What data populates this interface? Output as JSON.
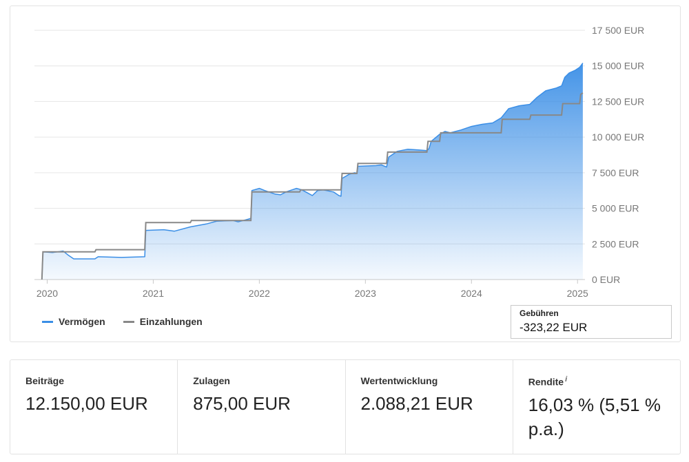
{
  "chart_data": {
    "type": "area",
    "ylim": [
      0,
      17500
    ],
    "y_ticks": [
      {
        "value": 0,
        "label": "0 EUR"
      },
      {
        "value": 2500,
        "label": "2 500 EUR"
      },
      {
        "value": 5000,
        "label": "5 000 EUR"
      },
      {
        "value": 7500,
        "label": "7 500 EUR"
      },
      {
        "value": 10000,
        "label": "10 000 EUR"
      },
      {
        "value": 12500,
        "label": "12 500 EUR"
      },
      {
        "value": 15000,
        "label": "15 000 EUR"
      },
      {
        "value": 17500,
        "label": "17 500 EUR"
      }
    ],
    "xlim": [
      2019.88,
      2025.07
    ],
    "x_ticks": [
      {
        "value": 2020,
        "label": "2020"
      },
      {
        "value": 2021,
        "label": "2021"
      },
      {
        "value": 2022,
        "label": "2022"
      },
      {
        "value": 2023,
        "label": "2023"
      },
      {
        "value": 2024,
        "label": "2024"
      },
      {
        "value": 2025,
        "label": "2025"
      }
    ],
    "grid": true,
    "legend_position": "bottom-left",
    "series": [
      {
        "name": "Vermögen",
        "color": "#3a8ee6",
        "style": "area",
        "points": [
          [
            2019.95,
            0
          ],
          [
            2019.96,
            1950
          ],
          [
            2020.05,
            1900
          ],
          [
            2020.15,
            2000
          ],
          [
            2020.2,
            1700
          ],
          [
            2020.25,
            1450
          ],
          [
            2020.45,
            1450
          ],
          [
            2020.48,
            1600
          ],
          [
            2020.7,
            1550
          ],
          [
            2020.92,
            1600
          ],
          [
            2020.93,
            3450
          ],
          [
            2021.1,
            3500
          ],
          [
            2021.2,
            3400
          ],
          [
            2021.35,
            3700
          ],
          [
            2021.5,
            3900
          ],
          [
            2021.6,
            4100
          ],
          [
            2021.75,
            4150
          ],
          [
            2021.8,
            4050
          ],
          [
            2021.9,
            4250
          ],
          [
            2021.92,
            4300
          ],
          [
            2021.93,
            6250
          ],
          [
            2022.0,
            6400
          ],
          [
            2022.05,
            6250
          ],
          [
            2022.15,
            6000
          ],
          [
            2022.2,
            5950
          ],
          [
            2022.25,
            6150
          ],
          [
            2022.35,
            6400
          ],
          [
            2022.4,
            6300
          ],
          [
            2022.45,
            6100
          ],
          [
            2022.5,
            5900
          ],
          [
            2022.55,
            6250
          ],
          [
            2022.6,
            6300
          ],
          [
            2022.7,
            6150
          ],
          [
            2022.75,
            5900
          ],
          [
            2022.77,
            5850
          ],
          [
            2022.78,
            7100
          ],
          [
            2022.85,
            7400
          ],
          [
            2022.9,
            7500
          ],
          [
            2022.92,
            7450
          ],
          [
            2022.93,
            7950
          ],
          [
            2023.1,
            8000
          ],
          [
            2023.15,
            8050
          ],
          [
            2023.2,
            7900
          ],
          [
            2023.22,
            8600
          ],
          [
            2023.3,
            9000
          ],
          [
            2023.4,
            9150
          ],
          [
            2023.5,
            9100
          ],
          [
            2023.58,
            9050
          ],
          [
            2023.6,
            9200
          ],
          [
            2023.62,
            9700
          ],
          [
            2023.7,
            10200
          ],
          [
            2023.75,
            10400
          ],
          [
            2023.8,
            10300
          ],
          [
            2023.9,
            10500
          ],
          [
            2024.0,
            10750
          ],
          [
            2024.1,
            10900
          ],
          [
            2024.2,
            11000
          ],
          [
            2024.28,
            11350
          ],
          [
            2024.35,
            12000
          ],
          [
            2024.45,
            12200
          ],
          [
            2024.55,
            12300
          ],
          [
            2024.62,
            12800
          ],
          [
            2024.7,
            13250
          ],
          [
            2024.8,
            13450
          ],
          [
            2024.85,
            13600
          ],
          [
            2024.88,
            14200
          ],
          [
            2024.92,
            14500
          ],
          [
            2024.98,
            14700
          ],
          [
            2025.02,
            14900
          ],
          [
            2025.05,
            15200
          ]
        ]
      },
      {
        "name": "Einzahlungen",
        "color": "#888888",
        "style": "step",
        "points": [
          [
            2019.95,
            0
          ],
          [
            2019.96,
            1950
          ],
          [
            2020.45,
            1950
          ],
          [
            2020.46,
            2100
          ],
          [
            2020.92,
            2100
          ],
          [
            2020.93,
            4000
          ],
          [
            2021.35,
            4000
          ],
          [
            2021.36,
            4150
          ],
          [
            2021.92,
            4150
          ],
          [
            2021.93,
            6150
          ],
          [
            2022.38,
            6150
          ],
          [
            2022.39,
            6300
          ],
          [
            2022.77,
            6300
          ],
          [
            2022.78,
            7450
          ],
          [
            2022.92,
            7450
          ],
          [
            2022.93,
            8150
          ],
          [
            2023.2,
            8150
          ],
          [
            2023.21,
            8950
          ],
          [
            2023.58,
            8950
          ],
          [
            2023.59,
            9700
          ],
          [
            2023.7,
            9700
          ],
          [
            2023.71,
            10300
          ],
          [
            2024.28,
            10300
          ],
          [
            2024.29,
            11250
          ],
          [
            2024.55,
            11250
          ],
          [
            2024.56,
            11550
          ],
          [
            2024.85,
            11550
          ],
          [
            2024.86,
            12350
          ],
          [
            2025.02,
            12350
          ],
          [
            2025.03,
            13000
          ],
          [
            2025.05,
            13100
          ]
        ]
      }
    ]
  },
  "legend": {
    "items": [
      {
        "label": "Vermögen",
        "color": "#3a8ee6"
      },
      {
        "label": "Einzahlungen",
        "color": "#888888"
      }
    ]
  },
  "fees": {
    "label": "Gebühren",
    "value": "-323,22 EUR"
  },
  "stats": [
    {
      "label": "Beiträge",
      "value": "12.150,00 EUR"
    },
    {
      "label": "Zulagen",
      "value": "875,00 EUR"
    },
    {
      "label": "Wertentwicklung",
      "value": "2.088,21 EUR"
    },
    {
      "label": "Rendite",
      "info": "i",
      "value": "16,03 % (5,51 % p.a.)"
    }
  ]
}
